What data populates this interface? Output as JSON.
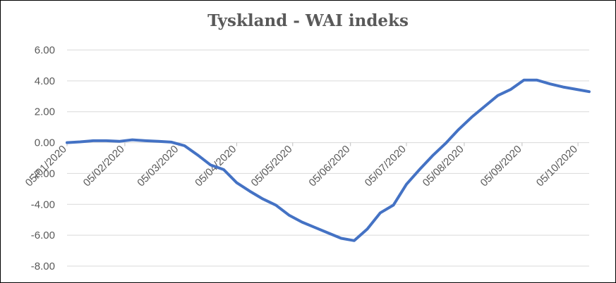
{
  "chart_data": {
    "type": "line",
    "title": "Tyskland - WAI indeks",
    "xlabel": "",
    "ylabel": "",
    "ylim": [
      -8,
      6
    ],
    "y_ticks": [
      "6.00",
      "4.00",
      "2.00",
      "0.00",
      "-2.00",
      "-4.00",
      "-6.00",
      "-8.00"
    ],
    "x_ticks": [
      {
        "label": "05/01/2020",
        "date": "2020-01-05"
      },
      {
        "label": "05/02/2020",
        "date": "2020-02-05"
      },
      {
        "label": "05/03/2020",
        "date": "2020-03-05"
      },
      {
        "label": "05/04/2020",
        "date": "2020-04-05"
      },
      {
        "label": "05/05/2020",
        "date": "2020-05-05"
      },
      {
        "label": "05/06/2020",
        "date": "2020-06-05"
      },
      {
        "label": "05/07/2020",
        "date": "2020-07-05"
      },
      {
        "label": "05/08/2020",
        "date": "2020-08-05"
      },
      {
        "label": "05/09/2020",
        "date": "2020-09-05"
      },
      {
        "label": "05/10/2020",
        "date": "2020-10-05"
      }
    ],
    "grid": true,
    "line_color": "#4472c4",
    "series": [
      {
        "x": [
          "2020-01-05",
          "2020-01-12",
          "2020-01-19",
          "2020-01-26",
          "2020-02-02",
          "2020-02-09",
          "2020-02-16",
          "2020-02-23",
          "2020-03-01",
          "2020-03-08",
          "2020-03-15",
          "2020-03-22",
          "2020-03-29",
          "2020-04-05",
          "2020-04-12",
          "2020-04-19",
          "2020-04-26",
          "2020-05-03",
          "2020-05-10",
          "2020-05-17",
          "2020-05-24",
          "2020-05-31",
          "2020-06-07",
          "2020-06-14",
          "2020-06-21",
          "2020-06-28",
          "2020-07-05",
          "2020-07-12",
          "2020-07-19",
          "2020-07-26",
          "2020-08-02",
          "2020-08-09",
          "2020-08-16",
          "2020-08-23",
          "2020-08-30",
          "2020-09-06",
          "2020-09-13",
          "2020-09-20",
          "2020-09-27",
          "2020-10-04",
          "2020-10-11"
        ],
        "values": [
          0.0,
          0.05,
          0.12,
          0.12,
          0.08,
          0.18,
          0.12,
          0.08,
          0.03,
          -0.2,
          -0.8,
          -1.45,
          -1.75,
          -2.6,
          -3.15,
          -3.65,
          -4.05,
          -4.7,
          -5.15,
          -5.5,
          -5.85,
          -6.2,
          -6.35,
          -5.6,
          -4.55,
          -4.05,
          -2.7,
          -1.75,
          -0.85,
          -0.05,
          0.85,
          1.65,
          2.35,
          3.05,
          3.45,
          4.05,
          4.05,
          3.8,
          3.6,
          3.45,
          3.3
        ]
      }
    ]
  }
}
